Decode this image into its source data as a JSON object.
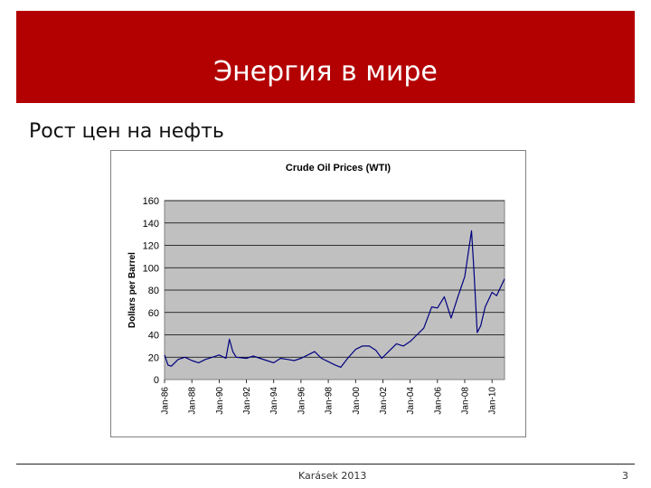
{
  "slide": {
    "title": "Энергия в мире",
    "subtitle": "Рост цен на нефть",
    "footer_author": "Karásek 2013",
    "page_number": "3",
    "banner_color": "#b30000"
  },
  "chart_data": {
    "type": "line",
    "title": "Crude Oil Prices (WTI)",
    "xlabel": "",
    "ylabel": "Dollars per Barrel",
    "ylim": [
      0,
      160
    ],
    "yticks": [
      0,
      20,
      40,
      60,
      80,
      100,
      120,
      140,
      160
    ],
    "xticks": [
      "Jan-86",
      "Jan-88",
      "Jan-90",
      "Jan-92",
      "Jan-94",
      "Jan-96",
      "Jan-98",
      "Jan-00",
      "Jan-02",
      "Jan-04",
      "Jan-06",
      "Jan-08",
      "Jan-10"
    ],
    "x_range": [
      "1986-01",
      "2010-12"
    ],
    "grid": true,
    "plot_background": "#c0c0c0",
    "line_color": "#000080",
    "series": [
      {
        "x": [
          "1986-01",
          "1986-04",
          "1986-07",
          "1987-01",
          "1987-07",
          "1988-01",
          "1988-07",
          "1989-01",
          "1989-07",
          "1990-01",
          "1990-07",
          "1990-10",
          "1991-01",
          "1991-04",
          "1992-01",
          "1992-07",
          "1993-01",
          "1993-07",
          "1994-01",
          "1994-07",
          "1995-01",
          "1995-07",
          "1996-01",
          "1996-07",
          "1997-01",
          "1997-07",
          "1998-01",
          "1998-07",
          "1998-12",
          "1999-06",
          "2000-01",
          "2000-07",
          "2001-01",
          "2001-07",
          "2001-12",
          "2002-07",
          "2003-01",
          "2003-07",
          "2004-01",
          "2004-07",
          "2005-01",
          "2005-08",
          "2006-01",
          "2006-07",
          "2007-01",
          "2007-07",
          "2008-01",
          "2008-07",
          "2008-09",
          "2008-12",
          "2009-03",
          "2009-07",
          "2010-01",
          "2010-05",
          "2010-12"
        ],
        "values": [
          22,
          13,
          12,
          18,
          20,
          17,
          15,
          18,
          20,
          22,
          19,
          36,
          25,
          20,
          19,
          21,
          19,
          17,
          15,
          19,
          18,
          17,
          19,
          22,
          25,
          19,
          16,
          13,
          11,
          19,
          27,
          30,
          30,
          26,
          19,
          26,
          32,
          30,
          34,
          40,
          46,
          65,
          64,
          74,
          55,
          74,
          92,
          133,
          100,
          42,
          48,
          65,
          78,
          75,
          90
        ]
      }
    ]
  }
}
